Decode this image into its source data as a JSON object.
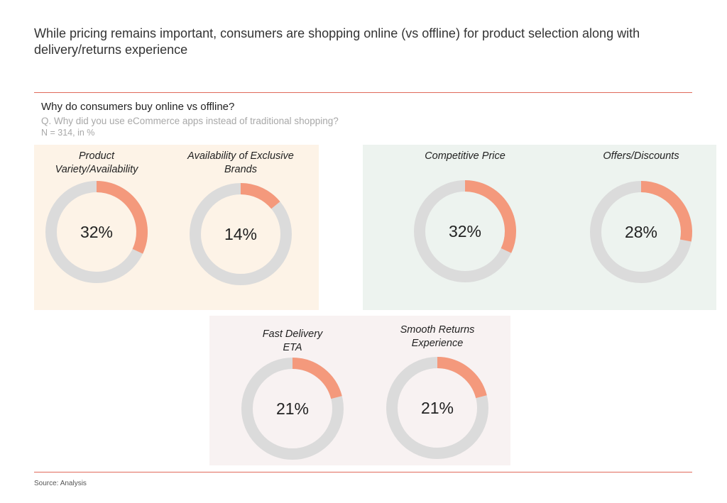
{
  "headline": "While pricing remains important, consumers are shopping online (vs offline) for product selection along with delivery/returns experience",
  "chart_title": "Why do consumers buy online vs offline?",
  "question": "Q. Why did you use  eCommerce apps instead of traditional shopping?",
  "sample": "N = 314, in %",
  "source": "Source: Analysis",
  "colors": {
    "accent": "#f4997c",
    "track": "#dbdbdb",
    "rule": "#e06a5a",
    "group_1_bg": "#fdf3e7",
    "group_2_bg": "#edf3ef",
    "group_3_bg": "#f8f2f2"
  },
  "chart_data": {
    "type": "donut",
    "unit": "%",
    "donuts": [
      {
        "label_lines": [
          "Product",
          "Variety/Availability"
        ],
        "value": 32,
        "value_label": "32%"
      },
      {
        "label_lines": [
          "Availability of Exclusive",
          "Brands"
        ],
        "value": 14,
        "value_label": "14%"
      },
      {
        "label_lines": [
          "Competitive Price"
        ],
        "value": 32,
        "value_label": "32%"
      },
      {
        "label_lines": [
          "Offers/Discounts"
        ],
        "value": 28,
        "value_label": "28%"
      },
      {
        "label_lines": [
          "Fast Delivery",
          "ETA"
        ],
        "value": 21,
        "value_label": "21%"
      },
      {
        "label_lines": [
          "Smooth Returns",
          "Experience"
        ],
        "value": 21,
        "value_label": "21%"
      }
    ]
  }
}
